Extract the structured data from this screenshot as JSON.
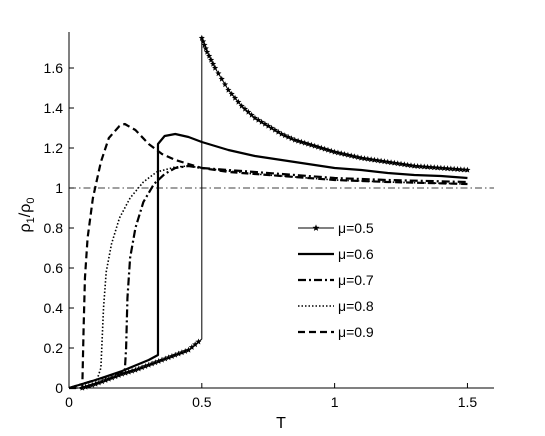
{
  "chart_data": {
    "type": "line",
    "xlabel": "T",
    "ylabel": {
      "rho": "ρ",
      "sub1": "1",
      "slash": "/",
      "sub0": "0"
    },
    "xlim": [
      0,
      1.6
    ],
    "ylim": [
      0,
      1.78
    ],
    "xticks": [
      0,
      0.5,
      1,
      1.5
    ],
    "xtick_labels": [
      "0",
      "0.5",
      "1",
      "1.5"
    ],
    "yticks": [
      0,
      0.2,
      0.4,
      0.6,
      0.8,
      1,
      1.2,
      1.4,
      1.6
    ],
    "ytick_labels": [
      "0",
      "0.2",
      "0.4",
      "0.6",
      "0.8",
      "1",
      "1.2",
      "1.4",
      "1.6"
    ],
    "reference_line": {
      "y": 1,
      "style": "dash-dot"
    },
    "grid": false,
    "legend_position": "right-middle",
    "series": [
      {
        "name": "μ=0.5",
        "style": "solid-star",
        "points": [
          [
            0.05,
            0.0
          ],
          [
            0.1,
            0.02
          ],
          [
            0.15,
            0.045
          ],
          [
            0.2,
            0.07
          ],
          [
            0.25,
            0.09
          ],
          [
            0.3,
            0.115
          ],
          [
            0.35,
            0.14
          ],
          [
            0.4,
            0.165
          ],
          [
            0.45,
            0.19
          ],
          [
            0.5,
            0.245
          ],
          [
            0.5,
            1.75
          ],
          [
            0.52,
            1.68
          ],
          [
            0.55,
            1.6
          ],
          [
            0.6,
            1.49
          ],
          [
            0.65,
            1.41
          ],
          [
            0.7,
            1.35
          ],
          [
            0.75,
            1.31
          ],
          [
            0.8,
            1.27
          ],
          [
            0.85,
            1.24
          ],
          [
            0.9,
            1.22
          ],
          [
            0.95,
            1.2
          ],
          [
            1.0,
            1.18
          ],
          [
            1.05,
            1.165
          ],
          [
            1.1,
            1.15
          ],
          [
            1.15,
            1.14
          ],
          [
            1.2,
            1.13
          ],
          [
            1.25,
            1.12
          ],
          [
            1.3,
            1.11
          ],
          [
            1.35,
            1.105
          ],
          [
            1.4,
            1.1
          ],
          [
            1.45,
            1.095
          ],
          [
            1.5,
            1.09
          ]
        ]
      },
      {
        "name": "μ=0.6",
        "style": "solid",
        "points": [
          [
            0.0,
            0.0
          ],
          [
            0.1,
            0.04
          ],
          [
            0.2,
            0.085
          ],
          [
            0.3,
            0.14
          ],
          [
            0.335,
            0.165
          ],
          [
            0.335,
            1.22
          ],
          [
            0.36,
            1.26
          ],
          [
            0.4,
            1.27
          ],
          [
            0.45,
            1.255
          ],
          [
            0.5,
            1.23
          ],
          [
            0.6,
            1.19
          ],
          [
            0.7,
            1.16
          ],
          [
            0.8,
            1.14
          ],
          [
            0.9,
            1.12
          ],
          [
            1.0,
            1.1
          ],
          [
            1.1,
            1.09
          ],
          [
            1.2,
            1.075
          ],
          [
            1.3,
            1.065
          ],
          [
            1.4,
            1.06
          ],
          [
            1.5,
            1.05
          ]
        ]
      },
      {
        "name": "μ=0.7",
        "style": "dash-dot",
        "points": [
          [
            0.0,
            0.0
          ],
          [
            0.1,
            0.04
          ],
          [
            0.21,
            0.085
          ],
          [
            0.215,
            0.2
          ],
          [
            0.22,
            0.45
          ],
          [
            0.23,
            0.65
          ],
          [
            0.25,
            0.8
          ],
          [
            0.28,
            0.93
          ],
          [
            0.32,
            1.02
          ],
          [
            0.36,
            1.07
          ],
          [
            0.4,
            1.1
          ],
          [
            0.45,
            1.11
          ],
          [
            0.5,
            1.1
          ],
          [
            0.6,
            1.09
          ],
          [
            0.7,
            1.08
          ],
          [
            0.8,
            1.07
          ],
          [
            0.9,
            1.06
          ],
          [
            1.0,
            1.05
          ],
          [
            1.2,
            1.04
          ],
          [
            1.5,
            1.03
          ]
        ]
      },
      {
        "name": "μ=0.8",
        "style": "dotted",
        "points": [
          [
            0.0,
            0.0
          ],
          [
            0.05,
            0.0
          ],
          [
            0.1,
            0.02
          ],
          [
            0.12,
            0.1
          ],
          [
            0.13,
            0.4
          ],
          [
            0.14,
            0.58
          ],
          [
            0.16,
            0.72
          ],
          [
            0.19,
            0.85
          ],
          [
            0.23,
            0.95
          ],
          [
            0.28,
            1.03
          ],
          [
            0.33,
            1.08
          ],
          [
            0.4,
            1.105
          ],
          [
            0.45,
            1.11
          ],
          [
            0.5,
            1.1
          ],
          [
            0.6,
            1.085
          ],
          [
            0.7,
            1.07
          ],
          [
            0.8,
            1.06
          ],
          [
            0.9,
            1.05
          ],
          [
            1.0,
            1.04
          ],
          [
            1.2,
            1.03
          ],
          [
            1.5,
            1.02
          ]
        ]
      },
      {
        "name": "μ=0.9",
        "style": "dashed",
        "points": [
          [
            0.0,
            0.0
          ],
          [
            0.05,
            0.0
          ],
          [
            0.055,
            0.3
          ],
          [
            0.06,
            0.55
          ],
          [
            0.07,
            0.75
          ],
          [
            0.09,
            0.95
          ],
          [
            0.12,
            1.13
          ],
          [
            0.15,
            1.25
          ],
          [
            0.19,
            1.31
          ],
          [
            0.21,
            1.32
          ],
          [
            0.25,
            1.29
          ],
          [
            0.3,
            1.22
          ],
          [
            0.35,
            1.17
          ],
          [
            0.4,
            1.14
          ],
          [
            0.45,
            1.12
          ],
          [
            0.5,
            1.1
          ],
          [
            0.6,
            1.08
          ],
          [
            0.7,
            1.07
          ],
          [
            0.8,
            1.06
          ],
          [
            0.9,
            1.05
          ],
          [
            1.0,
            1.04
          ],
          [
            1.2,
            1.03
          ],
          [
            1.5,
            1.02
          ]
        ]
      }
    ]
  }
}
